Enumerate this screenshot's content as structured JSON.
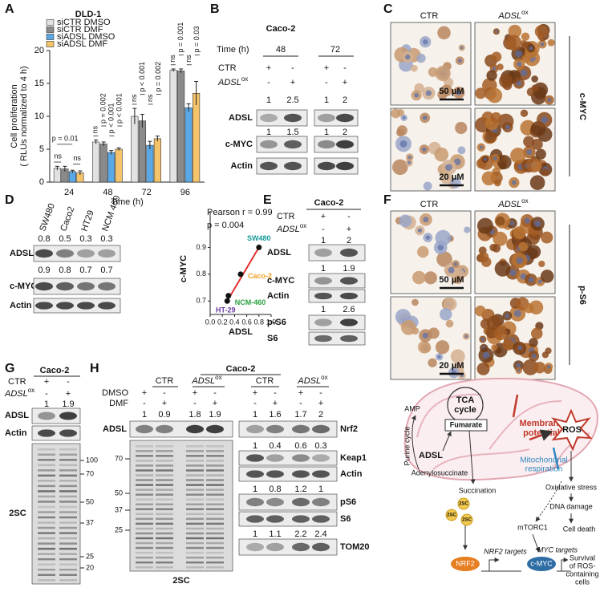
{
  "chart_data": [
    {
      "type": "bar",
      "title": "DLD-1",
      "y_label": [
        "Cell proliferation",
        "( RLUs normalized to 4 h)"
      ],
      "x_label": "Time (h)",
      "categories": [
        "24",
        "48",
        "72",
        "96"
      ],
      "series": [
        {
          "name": "siCTR DMSO",
          "color": "#e2e2e2",
          "values": [
            2.1,
            6.1,
            10.0,
            17.0
          ],
          "errors": [
            0.3,
            0.3,
            1.2,
            0.2
          ]
        },
        {
          "name": "siCTR DMF",
          "color": "#8a8a8a",
          "values": [
            2.0,
            5.8,
            9.3,
            16.9
          ],
          "errors": [
            0.4,
            0.3,
            1.0,
            0.3
          ]
        },
        {
          "name": "siADSL DMSO",
          "color": "#5aa9e6",
          "values": [
            1.6,
            4.5,
            5.6,
            11.3
          ],
          "errors": [
            0.2,
            0.3,
            0.6,
            0.6
          ]
        },
        {
          "name": "siADSL DMF",
          "color": "#f5c46a",
          "values": [
            1.4,
            5.0,
            6.6,
            13.5
          ],
          "errors": [
            0.3,
            0.2,
            0.4,
            1.8
          ]
        }
      ],
      "ylim": [
        0,
        20
      ],
      "yticks": [
        0,
        5,
        10,
        15,
        20
      ],
      "annotations": [
        [
          "ns",
          "p = 0.01",
          "ns"
        ],
        [
          "ns",
          "p = 0.002",
          "p < 0.001",
          "p < 0.001"
        ],
        [
          "ns",
          "p < 0.001",
          "ns",
          "p = 0.002"
        ],
        [
          "ns",
          "p = 0.001",
          "ns",
          "p = 0.03"
        ]
      ]
    },
    {
      "type": "scatter",
      "x_label": "ADSL",
      "y_label": "c-MYC",
      "x": [
        0.8,
        0.5,
        0.3,
        0.28
      ],
      "values": [
        0.9,
        0.8,
        0.72,
        0.7
      ],
      "point_labels": [
        "SW480",
        "Caco-2",
        "NCM-460",
        "HT-29"
      ],
      "point_label_colors": [
        "#1a9a9a",
        "#f0a020",
        "#2aa040",
        "#6a3aa0"
      ],
      "color": "#111111",
      "fit_line": {
        "color": "#e03030",
        "x": [
          0.28,
          0.8
        ],
        "values": [
          0.7,
          0.9
        ]
      },
      "xlim": [
        0,
        1
      ],
      "xticks": [
        {
          "value": 0,
          "label": "0.0"
        },
        0.2,
        0.4,
        0.6,
        0.8,
        {
          "value": 1,
          "label": "1.0"
        }
      ],
      "ylim": [
        0.65,
        1.0
      ],
      "yticks": [
        0.7,
        0.8,
        0.9
      ],
      "annotations": [
        "Pearson r = 0.99",
        "p = 0.004"
      ]
    }
  ],
  "panels": {
    "a": {
      "label": "A"
    },
    "b": {
      "label": "B",
      "cell_line": "Caco-2",
      "time_label": "Time (h)",
      "times": [
        48,
        72
      ],
      "ctr": "CTR",
      "ctr_signs": [
        "+",
        "-",
        "+",
        "-"
      ],
      "adsl_ox": [
        "ADSL",
        "ox"
      ],
      "ox_signs": [
        "-",
        "+",
        "-",
        "+"
      ],
      "adsl_quant": [
        1,
        2.5,
        1,
        2
      ],
      "myc_quant": [
        1,
        1.5,
        1,
        2
      ],
      "rows": [
        "ADSL",
        "c-MYC",
        "Actin"
      ]
    },
    "c": {
      "label": "C",
      "ctr": "CTR",
      "adsl_ox": [
        "ADSL",
        "ox"
      ],
      "scale_top": "50 μM",
      "scale_bottom": "20 μM",
      "stain": "c-MYC"
    },
    "d": {
      "label": "D",
      "cell_lines": [
        "SW480",
        "Caco2",
        "HT29",
        "NCM 460"
      ],
      "adsl_quant": [
        0.8,
        0.5,
        0.3,
        0.3
      ],
      "myc_quant": [
        0.9,
        0.8,
        0.7,
        0.7
      ],
      "rows": [
        "ADSL",
        "c-MYC",
        "Actin"
      ]
    },
    "e": {
      "label": "E",
      "cell_line": "Caco-2",
      "ctr": "CTR",
      "ctr_signs": [
        "+",
        "-"
      ],
      "adsl_ox": [
        "ADSL",
        "ox"
      ],
      "ox_signs": [
        "-",
        "+"
      ],
      "adsl_quant": [
        1,
        2
      ],
      "myc_quant": [
        1,
        1.9
      ],
      "ps6_quant": [
        1,
        2.6
      ],
      "rows": [
        "ADSL",
        "c-MYC",
        "Actin",
        "p-S6",
        "S6"
      ]
    },
    "f": {
      "label": "F",
      "ctr": "CTR",
      "adsl_ox": [
        "ADSL",
        "ox"
      ],
      "scale_top": "50 μM",
      "scale_bottom": "20 μM",
      "stain": "p-S6"
    },
    "g": {
      "label": "G",
      "cell_line": "Caco-2",
      "ctr": "CTR",
      "ctr_signs": [
        "+",
        "-"
      ],
      "adsl_ox": [
        "ADSL",
        "ox"
      ],
      "ox_signs": [
        "-",
        "+"
      ],
      "adsl_quant": [
        1,
        1.9
      ],
      "rows": [
        "ADSL",
        "Actin"
      ],
      "gel_label": "2SC",
      "markers": [
        100,
        70,
        50,
        37,
        25,
        20
      ]
    },
    "h": {
      "label": "H",
      "cell_line": "Caco-2",
      "ctr": "CTR",
      "adsl_ox": [
        "ADSL",
        "ox"
      ],
      "ctr_right": "CTR",
      "adsl_ox_right": [
        "ADSL",
        "ox"
      ],
      "dmso": "DMSO",
      "dmso_signs": [
        "+",
        "-",
        "+",
        "-",
        "+",
        "-",
        "+",
        "-"
      ],
      "dmf": "DMF",
      "dmf_signs": [
        "-",
        "+",
        "-",
        "+",
        "-",
        "+",
        "-",
        "+"
      ],
      "adsl_quant": [
        1,
        0.9,
        1.8,
        1.9
      ],
      "nrf2_quant": [
        1,
        1.6,
        1.7,
        2
      ],
      "keap1_quant": [
        1,
        0.4,
        0.6,
        0.3
      ],
      "ps6_quant": [
        1,
        0.8,
        1.2,
        1
      ],
      "tom20_quant": [
        1,
        1.1,
        2.2,
        2.4
      ],
      "left_row": "ADSL",
      "right_rows": [
        "Nrf2",
        "Keap1",
        "Actin",
        "pS6",
        "S6",
        "TOM20"
      ],
      "gel_label": "2SC",
      "markers": [
        70,
        50,
        37,
        25
      ]
    },
    "i": {
      "label": "I",
      "tca": [
        "TCA",
        "cycle"
      ],
      "fumarate": "Fumarate",
      "amp": "AMP",
      "purine_cycle": "Purine cycle",
      "adsl": "ADSL",
      "adenylosuccinate": "Adenylosuccinate",
      "succination": "Succination",
      "tsc": [
        "2SC",
        "2SC",
        "2SC"
      ],
      "membrane_potential": [
        "Membrane",
        "potential"
      ],
      "mito_respiration": [
        "Mitochondrial",
        "respiration"
      ],
      "ros": "ROS",
      "oxidative_stress": "Oxidative stress",
      "dna_damage": "DNA damage",
      "mtorc1": "mTORC1",
      "cell_death": "Cell death",
      "nrf2": "NRF2",
      "nrf2_targets": "NRF2 targets",
      "cmyc": "c-MYC",
      "myc_targets": "MYC targets",
      "survival": [
        "Survival",
        "of ROS-",
        "containing",
        "cells"
      ]
    }
  }
}
